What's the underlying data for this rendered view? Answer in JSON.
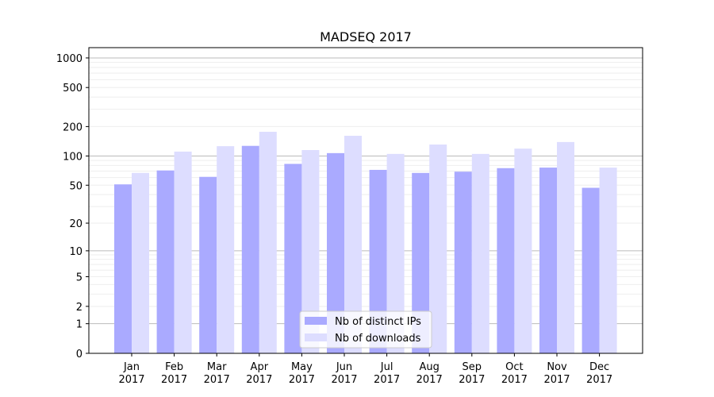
{
  "chart_data": {
    "type": "bar",
    "title": "MADSEQ 2017",
    "xlabel": "",
    "ylabel": "",
    "yscale": "log10(1+y)",
    "ylim": [
      0,
      1300
    ],
    "grid": true,
    "legend_placement": "bottom-center",
    "categories": [
      "Jan\n2017",
      "Feb\n2017",
      "Mar\n2017",
      "Apr\n2017",
      "May\n2017",
      "Jun\n2017",
      "Jul\n2017",
      "Aug\n2017",
      "Sep\n2017",
      "Oct\n2017",
      "Nov\n2017",
      "Dec\n2017"
    ],
    "yticks": [
      0,
      1,
      2,
      5,
      10,
      20,
      50,
      100,
      200,
      500,
      1000
    ],
    "series": [
      {
        "name": "Nb of distinct IPs",
        "color": "#aaaaff",
        "values": [
          51,
          71,
          61,
          127,
          83,
          107,
          72,
          67,
          69,
          75,
          76,
          47
        ]
      },
      {
        "name": "Nb of downloads",
        "color": "#ddddff",
        "values": [
          67,
          111,
          126,
          177,
          115,
          161,
          105,
          131,
          105,
          119,
          139,
          76
        ]
      }
    ]
  }
}
